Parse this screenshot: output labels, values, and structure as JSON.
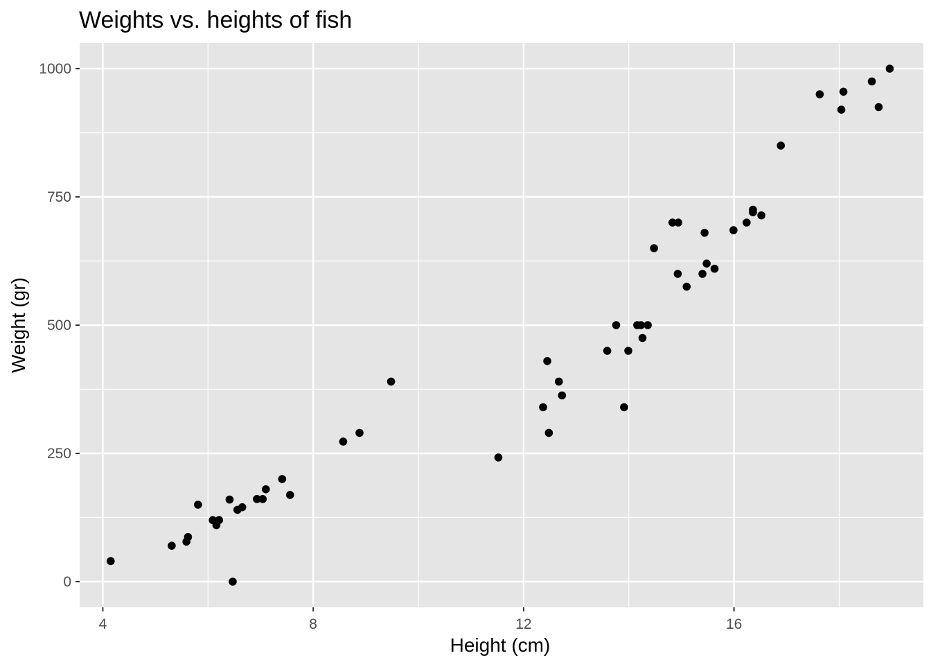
{
  "chart_data": {
    "type": "scatter",
    "title": "Weights vs. heights of fish",
    "xlabel": "Height (cm)",
    "ylabel": "Weight (gr)",
    "xlim": [
      3.56,
      19.6
    ],
    "ylim": [
      -50,
      1050
    ],
    "x_ticks": [
      4,
      8,
      12,
      16
    ],
    "x_tick_labels": [
      "4",
      "8",
      "12",
      "16"
    ],
    "x_minor_ticks": [
      6,
      10,
      14,
      18
    ],
    "y_ticks": [
      0,
      250,
      500,
      750,
      1000
    ],
    "y_tick_labels": [
      "0",
      "250",
      "500",
      "750",
      "1000"
    ],
    "y_minor_ticks": [
      125,
      375,
      625,
      875
    ],
    "grid": true,
    "panel_background": "#e5e5e5",
    "grid_color": "#ffffff",
    "point_color": "#000000",
    "series": [
      {
        "points": [
          [
            4.15,
            40
          ],
          [
            5.31,
            70
          ],
          [
            5.59,
            78
          ],
          [
            5.62,
            87
          ],
          [
            5.81,
            150
          ],
          [
            6.09,
            120
          ],
          [
            6.16,
            110
          ],
          [
            6.21,
            120
          ],
          [
            6.41,
            160
          ],
          [
            6.47,
            0
          ],
          [
            6.56,
            140
          ],
          [
            6.65,
            145
          ],
          [
            6.93,
            161
          ],
          [
            7.04,
            161
          ],
          [
            7.1,
            180
          ],
          [
            7.41,
            200
          ],
          [
            7.56,
            169
          ],
          [
            8.57,
            273
          ],
          [
            8.88,
            290
          ],
          [
            9.48,
            390
          ],
          [
            11.52,
            242
          ],
          [
            12.37,
            340
          ],
          [
            12.45,
            430
          ],
          [
            12.48,
            290
          ],
          [
            12.67,
            390
          ],
          [
            12.73,
            363
          ],
          [
            13.59,
            450
          ],
          [
            13.76,
            500
          ],
          [
            13.91,
            340
          ],
          [
            13.99,
            450
          ],
          [
            14.16,
            500
          ],
          [
            14.23,
            500
          ],
          [
            14.26,
            475
          ],
          [
            14.36,
            500
          ],
          [
            14.48,
            650
          ],
          [
            14.83,
            700
          ],
          [
            14.93,
            600
          ],
          [
            14.94,
            700
          ],
          [
            15.1,
            575
          ],
          [
            15.4,
            600
          ],
          [
            15.44,
            680
          ],
          [
            15.48,
            620
          ],
          [
            15.63,
            610
          ],
          [
            15.99,
            685
          ],
          [
            16.24,
            700
          ],
          [
            16.36,
            720
          ],
          [
            16.36,
            725
          ],
          [
            16.52,
            714
          ],
          [
            16.89,
            850
          ],
          [
            17.63,
            950
          ],
          [
            18.04,
            920
          ],
          [
            18.08,
            955
          ],
          [
            18.62,
            975
          ],
          [
            18.75,
            925
          ],
          [
            18.96,
            1000
          ]
        ]
      }
    ]
  }
}
